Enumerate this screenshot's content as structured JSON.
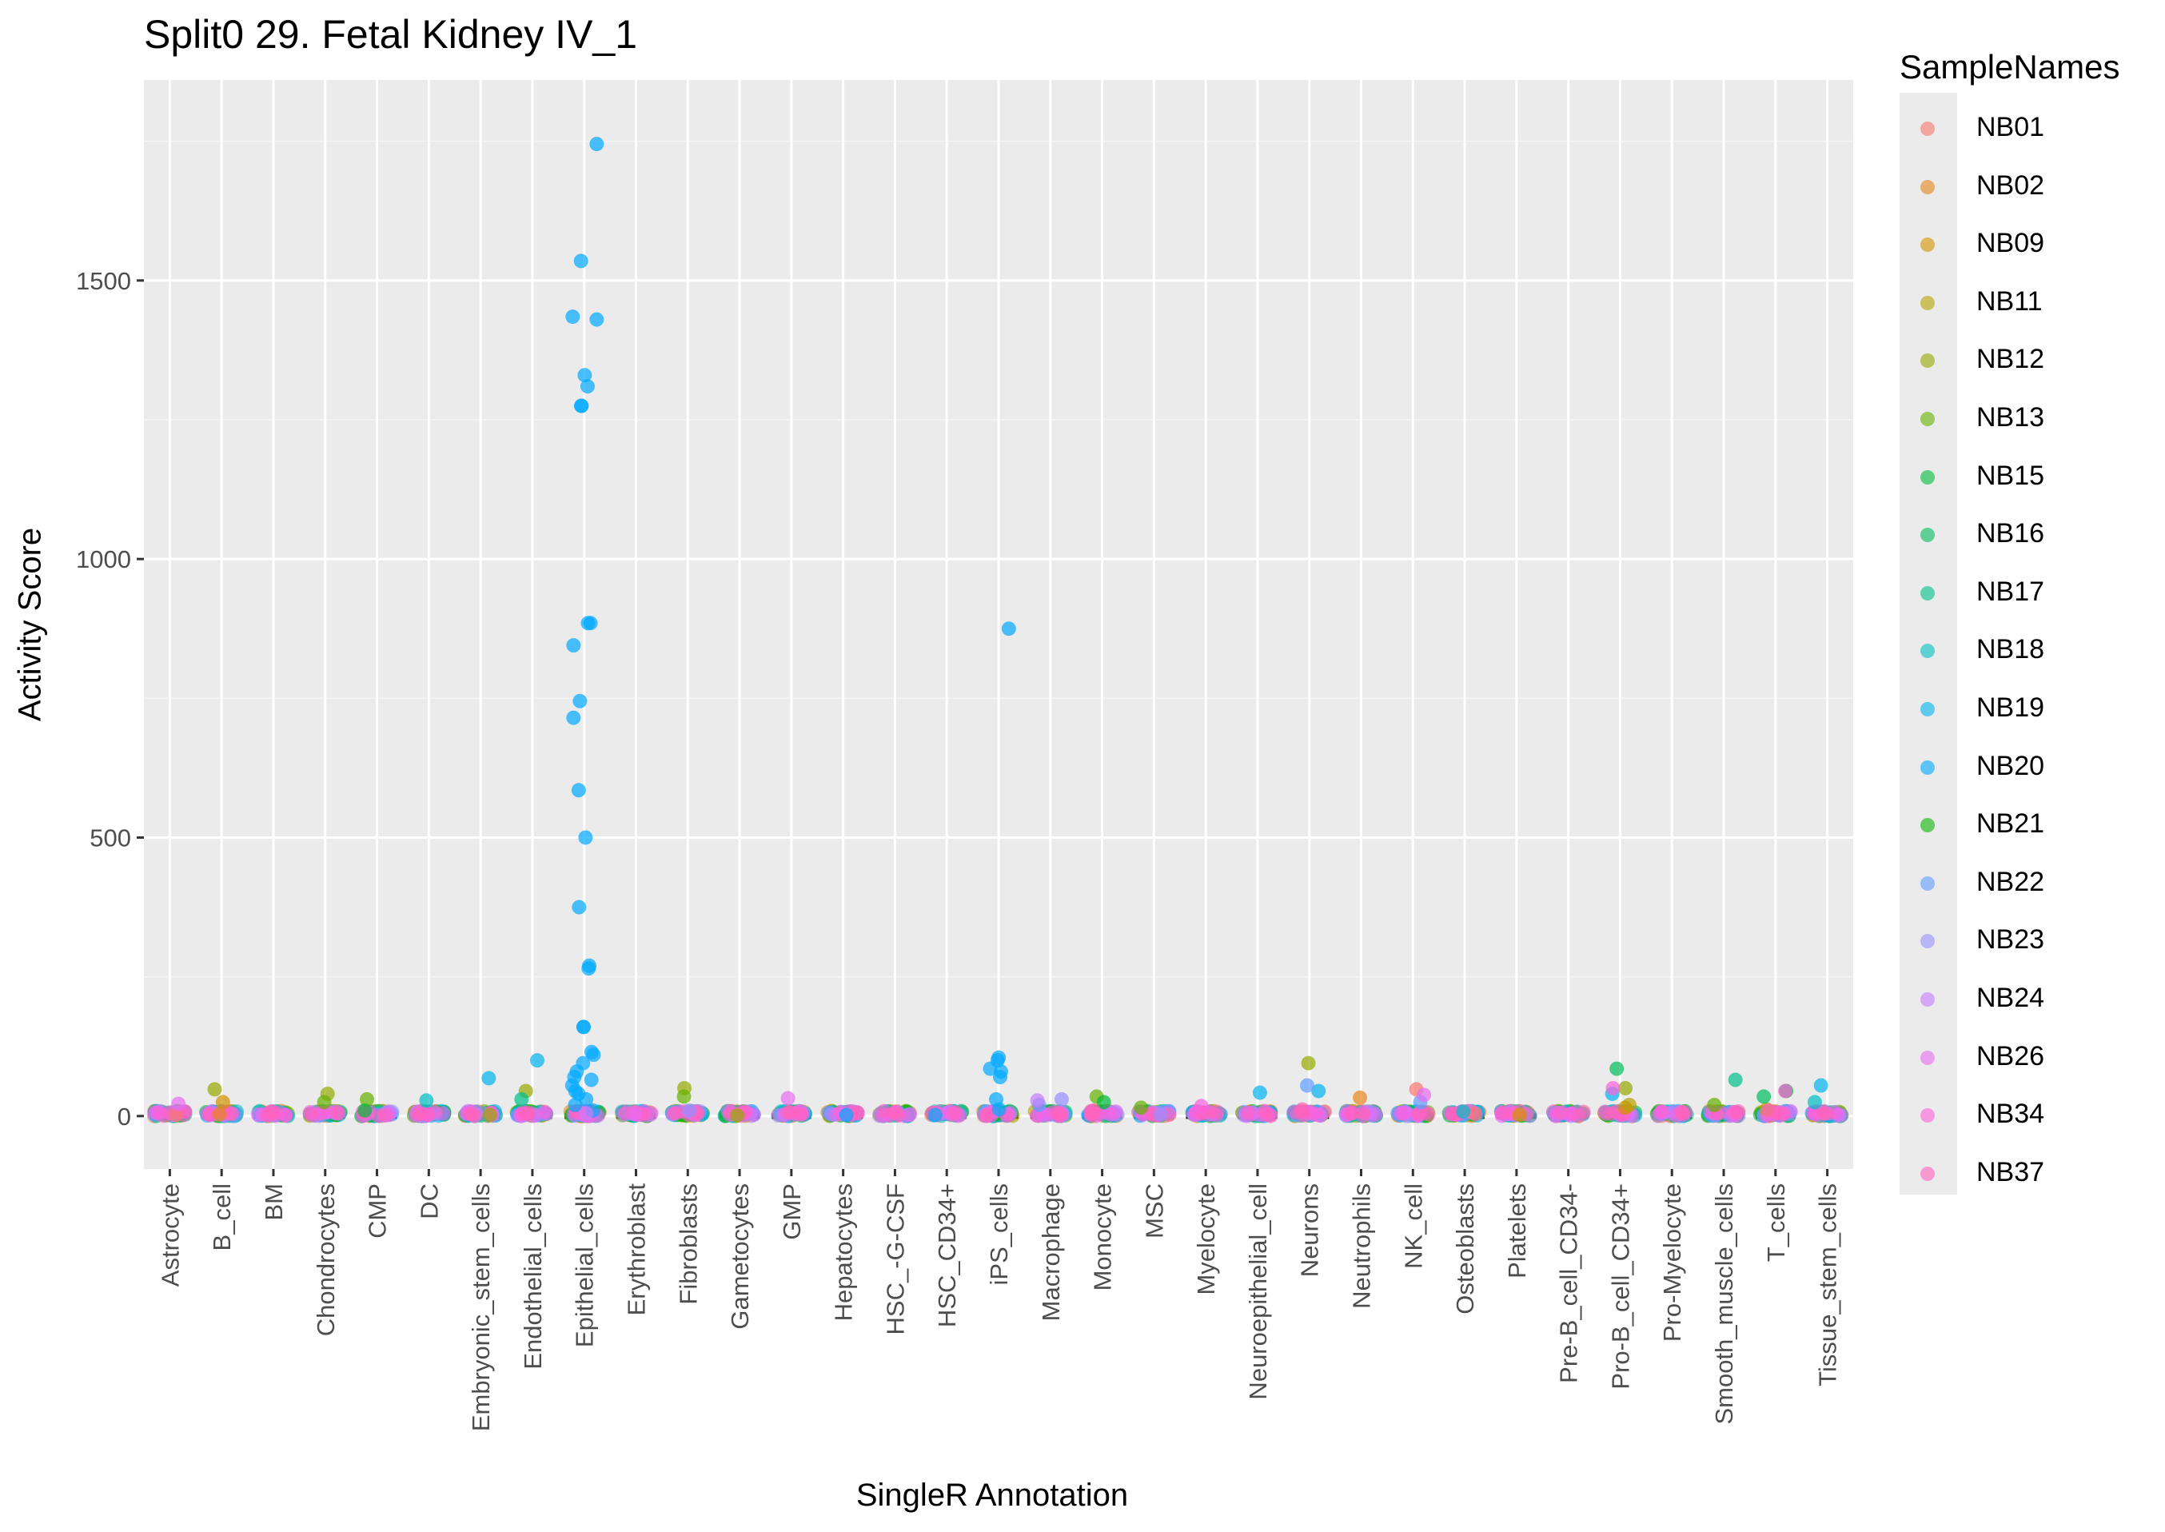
{
  "chart_data": {
    "type": "scatter",
    "title": "Split0 29. Fetal Kidney IV_1",
    "xlabel": "SingleR Annotation",
    "ylabel": "Activity Score",
    "ylim": [
      -95,
      1860
    ],
    "yticks": [
      0,
      500,
      1000,
      1500
    ],
    "ytick_labels": [
      "0",
      "500",
      "1000",
      "1500"
    ],
    "grid": true,
    "legend_title": "SampleNames",
    "legend_position": "right",
    "categories": [
      "Astrocyte",
      "B_cell",
      "BM",
      "Chondrocytes",
      "CMP",
      "DC",
      "Embryonic_stem_cells",
      "Endothelial_cells",
      "Epithelial_cells",
      "Erythroblast",
      "Fibroblasts",
      "Gametocytes",
      "GMP",
      "Hepatocytes",
      "HSC_-G-CSF",
      "HSC_CD34+",
      "iPS_cells",
      "Macrophage",
      "Monocyte",
      "MSC",
      "Myelocyte",
      "Neuroepithelial_cell",
      "Neurons",
      "Neutrophils",
      "NK_cell",
      "Osteoblasts",
      "Platelets",
      "Pre-B_cell_CD34-",
      "Pro-B_cell_CD34+",
      "Pro-Myelocyte",
      "Smooth_muscle_cells",
      "T_cells",
      "Tissue_stem_cells"
    ],
    "series": [
      {
        "name": "NB01",
        "color": "#F8766D",
        "points": [
          [
            "NK_cell",
            48
          ],
          [
            "Osteoblasts",
            5
          ],
          [
            "Astrocyte",
            2
          ]
        ]
      },
      {
        "name": "NB02",
        "color": "#E7861B",
        "points": [
          [
            "Neutrophils",
            33
          ],
          [
            "B_cell",
            3
          ]
        ]
      },
      {
        "name": "NB09",
        "color": "#D39200",
        "points": [
          [
            "B_cell",
            25
          ],
          [
            "Pro-B_cell_CD34+",
            15
          ],
          [
            "Platelets",
            2
          ]
        ]
      },
      {
        "name": "NB11",
        "color": "#B8A100",
        "points": [
          [
            "Pro-B_cell_CD34+",
            20
          ],
          [
            "T_cells",
            12
          ]
        ]
      },
      {
        "name": "NB12",
        "color": "#95A900",
        "points": [
          [
            "B_cell",
            48
          ],
          [
            "Chondrocytes",
            40
          ],
          [
            "Fibroblasts",
            50
          ],
          [
            "Neurons",
            95
          ],
          [
            "Pro-B_cell_CD34+",
            50
          ],
          [
            "Embryonic_stem_cells",
            2
          ],
          [
            "Gametocytes",
            1
          ],
          [
            "Endothelial_cells",
            45
          ]
        ]
      },
      {
        "name": "NB13",
        "color": "#64B200",
        "points": [
          [
            "CMP",
            30
          ],
          [
            "Chondrocytes",
            25
          ],
          [
            "Monocyte",
            35
          ],
          [
            "Fibroblasts",
            35
          ],
          [
            "MSC",
            15
          ],
          [
            "Smooth_muscle_cells",
            20
          ]
        ]
      },
      {
        "name": "NB15",
        "color": "#00BA38",
        "points": [
          [
            "T_cells",
            45
          ],
          [
            "Monocyte",
            25
          ],
          [
            "CMP",
            10
          ]
        ]
      },
      {
        "name": "NB16",
        "color": "#00BD5C",
        "points": [
          [
            "Pro-B_cell_CD34+",
            85
          ],
          [
            "T_cells",
            35
          ]
        ]
      },
      {
        "name": "NB17",
        "color": "#00C08B",
        "points": [
          [
            "Smooth_muscle_cells",
            65
          ],
          [
            "Endothelial_cells",
            30
          ]
        ]
      },
      {
        "name": "NB18",
        "color": "#00BFC4",
        "points": [
          [
            "DC",
            28
          ],
          [
            "Osteoblasts",
            8
          ],
          [
            "Tissue_stem_cells",
            25
          ]
        ]
      },
      {
        "name": "NB19",
        "color": "#00B4F0",
        "points": [
          [
            "Tissue_stem_cells",
            55
          ],
          [
            "Embryonic_stem_cells",
            68
          ],
          [
            "Endothelial_cells",
            100
          ],
          [
            "Neurons",
            45
          ],
          [
            "Pro-B_cell_CD34+",
            40
          ],
          [
            "Neuroepithelial_cell",
            42
          ]
        ]
      },
      {
        "name": "NB20",
        "color": "#00A9FF",
        "points": [
          [
            "Epithelial_cells",
            1745
          ],
          [
            "Epithelial_cells",
            1535
          ],
          [
            "Epithelial_cells",
            1435
          ],
          [
            "Epithelial_cells",
            1430
          ],
          [
            "Epithelial_cells",
            1330
          ],
          [
            "Epithelial_cells",
            1310
          ],
          [
            "Epithelial_cells",
            1275
          ],
          [
            "Epithelial_cells",
            1275
          ],
          [
            "Epithelial_cells",
            885
          ],
          [
            "Epithelial_cells",
            885
          ],
          [
            "Epithelial_cells",
            845
          ],
          [
            "Epithelial_cells",
            745
          ],
          [
            "Epithelial_cells",
            715
          ],
          [
            "Epithelial_cells",
            585
          ],
          [
            "Epithelial_cells",
            500
          ],
          [
            "Epithelial_cells",
            375
          ],
          [
            "Epithelial_cells",
            270
          ],
          [
            "Epithelial_cells",
            265
          ],
          [
            "Epithelial_cells",
            160
          ],
          [
            "Epithelial_cells",
            160
          ],
          [
            "Epithelial_cells",
            115
          ],
          [
            "Epithelial_cells",
            110
          ],
          [
            "Epithelial_cells",
            95
          ],
          [
            "Epithelial_cells",
            80
          ],
          [
            "Epithelial_cells",
            70
          ],
          [
            "Epithelial_cells",
            65
          ],
          [
            "Epithelial_cells",
            55
          ],
          [
            "Epithelial_cells",
            45
          ],
          [
            "Epithelial_cells",
            40
          ],
          [
            "Epithelial_cells",
            30
          ],
          [
            "Epithelial_cells",
            20
          ],
          [
            "Epithelial_cells",
            10
          ],
          [
            "iPS_cells",
            875
          ],
          [
            "iPS_cells",
            105
          ],
          [
            "iPS_cells",
            100
          ],
          [
            "iPS_cells",
            85
          ],
          [
            "iPS_cells",
            80
          ],
          [
            "iPS_cells",
            70
          ],
          [
            "iPS_cells",
            30
          ],
          [
            "iPS_cells",
            12
          ],
          [
            "Hepatocytes",
            2
          ],
          [
            "HSC_CD34+",
            2
          ]
        ]
      },
      {
        "name": "NB21",
        "color": "#0CB702",
        "points": []
      },
      {
        "name": "NB22",
        "color": "#619CFF",
        "points": [
          [
            "Macrophage",
            20
          ],
          [
            "Neurons",
            55
          ],
          [
            "NK_cell",
            25
          ]
        ]
      },
      {
        "name": "NB23",
        "color": "#9590FF",
        "points": [
          [
            "Macrophage",
            30
          ],
          [
            "Fibroblasts",
            10
          ],
          [
            "MSC",
            3
          ]
        ]
      },
      {
        "name": "NB24",
        "color": "#C77CFF",
        "points": [
          [
            "Macrophage",
            28
          ],
          [
            "Epithelial_cells",
            5
          ]
        ]
      },
      {
        "name": "NB26",
        "color": "#E76BF3",
        "points": [
          [
            "GMP",
            32
          ],
          [
            "NK_cell",
            38
          ],
          [
            "Astrocyte",
            22
          ],
          [
            "Erythroblast",
            3
          ]
        ]
      },
      {
        "name": "NB34",
        "color": "#FA62DB",
        "points": [
          [
            "Myelocyte",
            18
          ],
          [
            "Pro-B_cell_CD34+",
            50
          ],
          [
            "T_cells",
            45
          ],
          [
            "BM",
            2
          ]
        ]
      },
      {
        "name": "NB37",
        "color": "#FF62BC",
        "points": [
          [
            "Monocyte",
            10
          ],
          [
            "Neurons",
            12
          ],
          [
            "T_cells",
            10
          ]
        ]
      }
    ]
  }
}
